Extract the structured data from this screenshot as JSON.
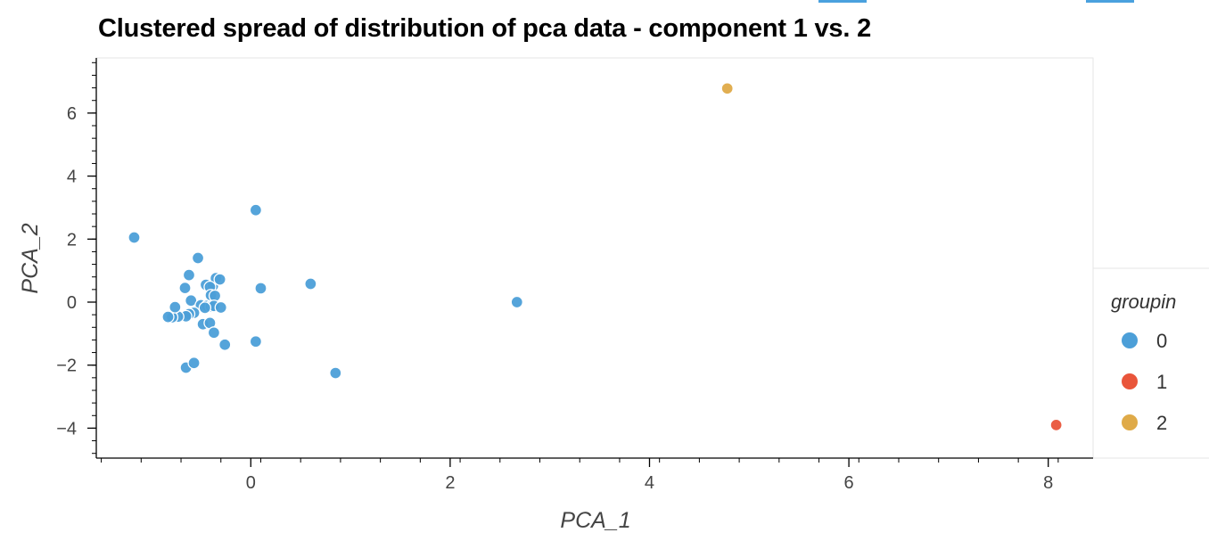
{
  "chart_data": {
    "type": "scatter",
    "title": "Clustered spread of distribution of pca data - component 1 vs. 2",
    "xlabel": "PCA_1",
    "ylabel": "PCA_2",
    "xlim": [
      -1.55,
      8.45
    ],
    "ylim": [
      -4.95,
      7.75
    ],
    "xticks": [
      0,
      2,
      4,
      6,
      8
    ],
    "yticks": [
      -4,
      -2,
      0,
      2,
      4,
      6
    ],
    "xtick_labels": [
      "0",
      "2",
      "4",
      "6",
      "8"
    ],
    "ytick_labels": [
      "−4",
      "−2",
      "0",
      "2",
      "4",
      "6"
    ],
    "grid": false,
    "legend": {
      "title": "groupin",
      "placement": "right",
      "entries": [
        {
          "label": "0",
          "color": "#4c9fd8"
        },
        {
          "label": "1",
          "color": "#e9553a"
        },
        {
          "label": "2",
          "color": "#dfaa48"
        }
      ]
    },
    "series": [
      {
        "name": "0",
        "color": "#4c9fd8",
        "points": [
          [
            -1.17,
            2.05
          ],
          [
            0.05,
            2.92
          ],
          [
            -0.53,
            1.4
          ],
          [
            -0.62,
            0.86
          ],
          [
            -0.66,
            0.45
          ],
          [
            -0.45,
            0.55
          ],
          [
            -0.38,
            0.52
          ],
          [
            -0.35,
            0.76
          ],
          [
            -0.31,
            0.72
          ],
          [
            -0.41,
            0.48
          ],
          [
            -0.4,
            0.22
          ],
          [
            -0.36,
            0.2
          ],
          [
            -0.6,
            0.05
          ],
          [
            -0.5,
            -0.1
          ],
          [
            -0.44,
            -0.12
          ],
          [
            -0.4,
            -0.14
          ],
          [
            -0.37,
            -0.12
          ],
          [
            -0.3,
            -0.17
          ],
          [
            -0.46,
            -0.18
          ],
          [
            -0.57,
            -0.34
          ],
          [
            -0.62,
            -0.38
          ],
          [
            -0.65,
            -0.45
          ],
          [
            -0.73,
            -0.46
          ],
          [
            -0.79,
            -0.48
          ],
          [
            -0.83,
            -0.47
          ],
          [
            -0.76,
            -0.16
          ],
          [
            -0.48,
            -0.7
          ],
          [
            -0.41,
            -0.66
          ],
          [
            -0.37,
            -0.97
          ],
          [
            -0.26,
            -1.35
          ],
          [
            0.05,
            -1.25
          ],
          [
            0.1,
            0.44
          ],
          [
            0.6,
            0.58
          ],
          [
            0.85,
            -2.25
          ],
          [
            -0.65,
            -2.08
          ],
          [
            -0.57,
            -1.93
          ],
          [
            2.67,
            0.0
          ]
        ]
      },
      {
        "name": "1",
        "color": "#e9553a",
        "points": [
          [
            8.08,
            -3.9
          ]
        ]
      },
      {
        "name": "2",
        "color": "#dfaa48",
        "points": [
          [
            4.78,
            6.78
          ]
        ]
      }
    ]
  }
}
